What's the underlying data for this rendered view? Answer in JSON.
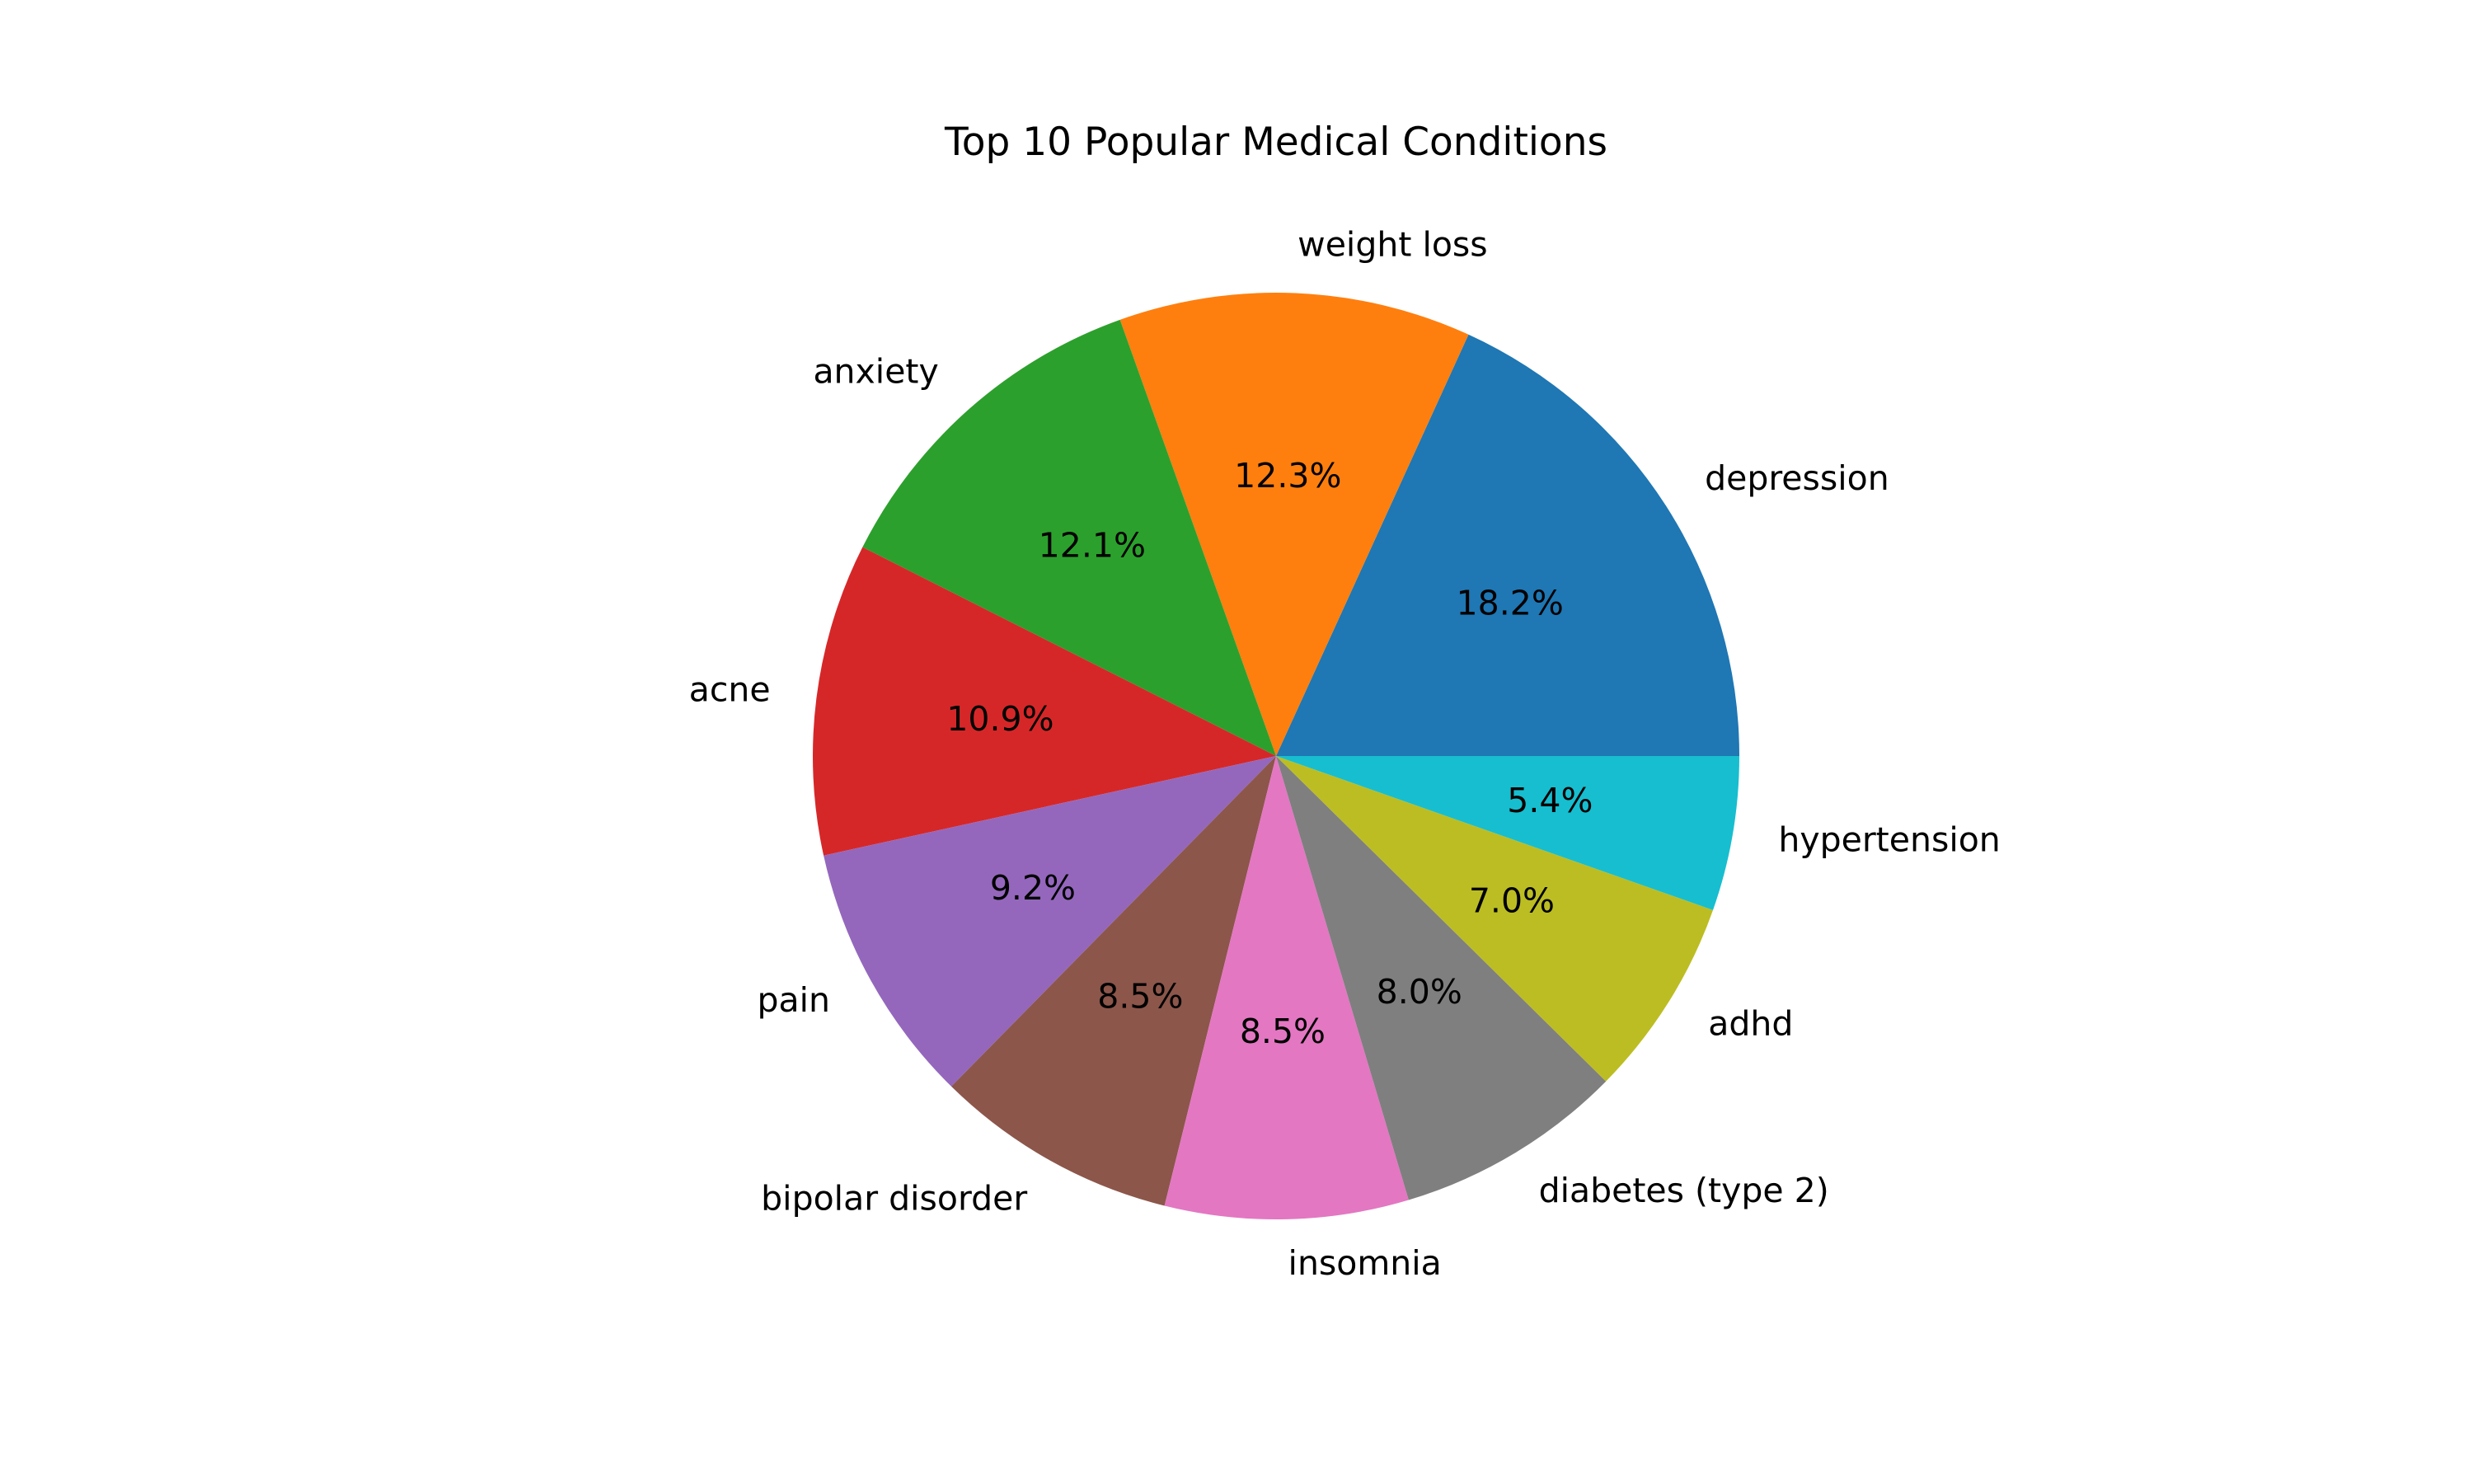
{
  "chart_data": {
    "type": "pie",
    "title": "Top 10 Popular Medical Conditions",
    "start_angle_deg": 0,
    "direction": "counterclockwise",
    "slices": [
      {
        "label": "depression",
        "value": 18.2,
        "pct_label": "18.2%",
        "color": "#1f77b4"
      },
      {
        "label": "weight loss",
        "value": 12.3,
        "pct_label": "12.3%",
        "color": "#ff7f0e"
      },
      {
        "label": "anxiety",
        "value": 12.1,
        "pct_label": "12.1%",
        "color": "#2ca02c"
      },
      {
        "label": "acne",
        "value": 10.9,
        "pct_label": "10.9%",
        "color": "#d62728"
      },
      {
        "label": "pain",
        "value": 9.2,
        "pct_label": "9.2%",
        "color": "#9467bd"
      },
      {
        "label": "bipolar disorder",
        "value": 8.5,
        "pct_label": "8.5%",
        "color": "#8c564b"
      },
      {
        "label": "insomnia",
        "value": 8.5,
        "pct_label": "8.5%",
        "color": "#e377c2"
      },
      {
        "label": "diabetes (type 2)",
        "value": 8.0,
        "pct_label": "8.0%",
        "color": "#7f7f7f"
      },
      {
        "label": "adhd",
        "value": 7.0,
        "pct_label": "7.0%",
        "color": "#bcbd22"
      },
      {
        "label": "hypertension",
        "value": 5.4,
        "pct_label": "5.4%",
        "color": "#17becf"
      }
    ]
  }
}
